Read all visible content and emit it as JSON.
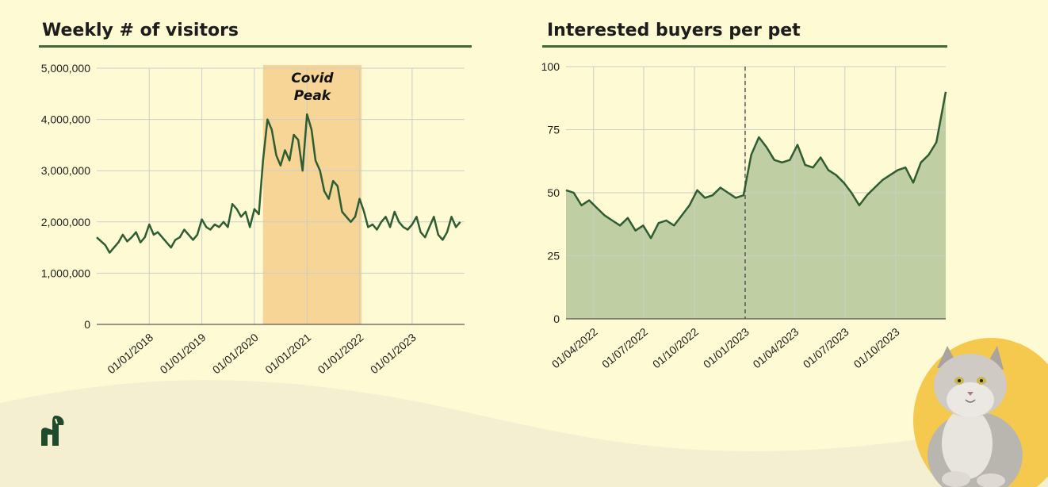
{
  "colors": {
    "background": "#fefbd4",
    "line": "#2f5d33",
    "area_fill": "#c0cfa3",
    "highlight": "#f7d597",
    "rule": "#3f6b3a",
    "grid": "#cccccc"
  },
  "decor": {
    "logo": "leaf-logo-icon",
    "cat": "cat-photo"
  },
  "chart_data": [
    {
      "type": "line",
      "title": "Weekly # of visitors",
      "xlabel": "",
      "ylabel": "",
      "ylim": [
        0,
        5000000
      ],
      "yticks": [
        0,
        1000000,
        2000000,
        3000000,
        4000000,
        5000000
      ],
      "ytick_labels": [
        "0",
        "1,000,000",
        "2,000,000",
        "3,000,000",
        "4,000,000",
        "5,000,000"
      ],
      "xlim": [
        "2017-01-01",
        "2023-12-31"
      ],
      "xtick_labels": [
        "01/01/2018",
        "01/01/2019",
        "01/01/2020",
        "01/01/2021",
        "01/01/2022",
        "01/01/2023"
      ],
      "xtick_dates": [
        "2018-01-01",
        "2019-01-01",
        "2020-01-01",
        "2021-01-01",
        "2022-01-01",
        "2023-01-01"
      ],
      "grid": true,
      "annotation": {
        "label": "Covid Peak",
        "label_lines": [
          "Covid",
          "Peak"
        ],
        "x_start": "2020-03-01",
        "x_end": "2022-01-15"
      },
      "series": [
        {
          "x": [
            "2017-01-01",
            "2017-02-01",
            "2017-03-01",
            "2017-04-01",
            "2017-05-01",
            "2017-06-01",
            "2017-07-01",
            "2017-08-01",
            "2017-09-01",
            "2017-10-01",
            "2017-11-01",
            "2017-12-01",
            "2018-01-01",
            "2018-02-01",
            "2018-03-01",
            "2018-04-01",
            "2018-05-01",
            "2018-06-01",
            "2018-07-01",
            "2018-08-01",
            "2018-09-01",
            "2018-10-01",
            "2018-11-01",
            "2018-12-01",
            "2019-01-01",
            "2019-02-01",
            "2019-03-01",
            "2019-04-01",
            "2019-05-01",
            "2019-06-01",
            "2019-07-01",
            "2019-08-01",
            "2019-09-01",
            "2019-10-01",
            "2019-11-01",
            "2019-12-01",
            "2020-01-01",
            "2020-02-01",
            "2020-03-01",
            "2020-04-01",
            "2020-05-01",
            "2020-06-01",
            "2020-07-01",
            "2020-08-01",
            "2020-09-01",
            "2020-10-01",
            "2020-11-01",
            "2020-12-01",
            "2021-01-01",
            "2021-02-01",
            "2021-03-01",
            "2021-04-01",
            "2021-05-01",
            "2021-06-01",
            "2021-07-01",
            "2021-08-01",
            "2021-09-01",
            "2021-10-01",
            "2021-11-01",
            "2021-12-01",
            "2022-01-01",
            "2022-02-01",
            "2022-03-01",
            "2022-04-01",
            "2022-05-01",
            "2022-06-01",
            "2022-07-01",
            "2022-08-01",
            "2022-09-01",
            "2022-10-01",
            "2022-11-01",
            "2022-12-01",
            "2023-01-01",
            "2023-02-01",
            "2023-03-01",
            "2023-04-01",
            "2023-05-01",
            "2023-06-01",
            "2023-07-01",
            "2023-08-01",
            "2023-09-01",
            "2023-10-01",
            "2023-11-01",
            "2023-12-01"
          ],
          "values": [
            1700000,
            1620000,
            1550000,
            1400000,
            1500000,
            1600000,
            1750000,
            1620000,
            1700000,
            1800000,
            1600000,
            1700000,
            1950000,
            1750000,
            1800000,
            1700000,
            1600000,
            1500000,
            1650000,
            1700000,
            1850000,
            1750000,
            1650000,
            1750000,
            2050000,
            1900000,
            1850000,
            1950000,
            1900000,
            2000000,
            1900000,
            2350000,
            2250000,
            2100000,
            2200000,
            1900000,
            2250000,
            2150000,
            3200000,
            4000000,
            3800000,
            3300000,
            3100000,
            3400000,
            3200000,
            3700000,
            3600000,
            3000000,
            4100000,
            3800000,
            3200000,
            3000000,
            2600000,
            2450000,
            2800000,
            2700000,
            2200000,
            2100000,
            2000000,
            2100000,
            2450000,
            2200000,
            1900000,
            1950000,
            1850000,
            2000000,
            2100000,
            1900000,
            2200000,
            2000000,
            1900000,
            1850000,
            1950000,
            2100000,
            1800000,
            1700000,
            1900000,
            2100000,
            1750000,
            1650000,
            1800000,
            2100000,
            1900000,
            2000000
          ]
        }
      ]
    },
    {
      "type": "area",
      "title": "Interested buyers per pet",
      "xlabel": "",
      "ylabel": "",
      "ylim": [
        0,
        100
      ],
      "yticks": [
        0,
        25,
        50,
        75,
        100
      ],
      "ytick_labels": [
        "0",
        "25",
        "50",
        "75",
        "100"
      ],
      "xlim": [
        "2022-02-10",
        "2023-12-31"
      ],
      "xtick_labels": [
        "01/04/2022",
        "01/07/2022",
        "01/10/2022",
        "01/01/2023",
        "01/04/2023",
        "01/07/2023",
        "01/10/2023"
      ],
      "xtick_dates": [
        "2022-04-01",
        "2022-07-01",
        "2022-10-01",
        "2023-01-01",
        "2023-04-01",
        "2023-07-01",
        "2023-10-01"
      ],
      "grid": true,
      "reference_line": {
        "x": "2023-01-01",
        "style": "dashed"
      },
      "series": [
        {
          "x": [
            "2022-02-10",
            "2022-02-24",
            "2022-03-10",
            "2022-03-24",
            "2022-04-07",
            "2022-04-21",
            "2022-05-05",
            "2022-05-19",
            "2022-06-02",
            "2022-06-16",
            "2022-06-30",
            "2022-07-14",
            "2022-07-28",
            "2022-08-11",
            "2022-08-25",
            "2022-09-08",
            "2022-09-22",
            "2022-10-06",
            "2022-10-20",
            "2022-11-03",
            "2022-11-17",
            "2022-12-01",
            "2022-12-15",
            "2022-12-29",
            "2023-01-12",
            "2023-01-26",
            "2023-02-09",
            "2023-02-23",
            "2023-03-09",
            "2023-03-23",
            "2023-04-06",
            "2023-04-20",
            "2023-05-04",
            "2023-05-18",
            "2023-06-01",
            "2023-06-15",
            "2023-06-29",
            "2023-07-13",
            "2023-07-27",
            "2023-08-10",
            "2023-08-24",
            "2023-09-07",
            "2023-09-21",
            "2023-10-05",
            "2023-10-19",
            "2023-11-02",
            "2023-11-16",
            "2023-11-30",
            "2023-12-14",
            "2023-12-31"
          ],
          "values": [
            51,
            50,
            45,
            47,
            44,
            41,
            39,
            37,
            40,
            35,
            37,
            32,
            38,
            39,
            37,
            41,
            45,
            51,
            48,
            49,
            52,
            50,
            48,
            49,
            65,
            72,
            68,
            63,
            62,
            63,
            69,
            61,
            60,
            64,
            59,
            57,
            54,
            50,
            45,
            49,
            52,
            55,
            57,
            59,
            60,
            54,
            62,
            65,
            70,
            90
          ]
        }
      ]
    }
  ]
}
